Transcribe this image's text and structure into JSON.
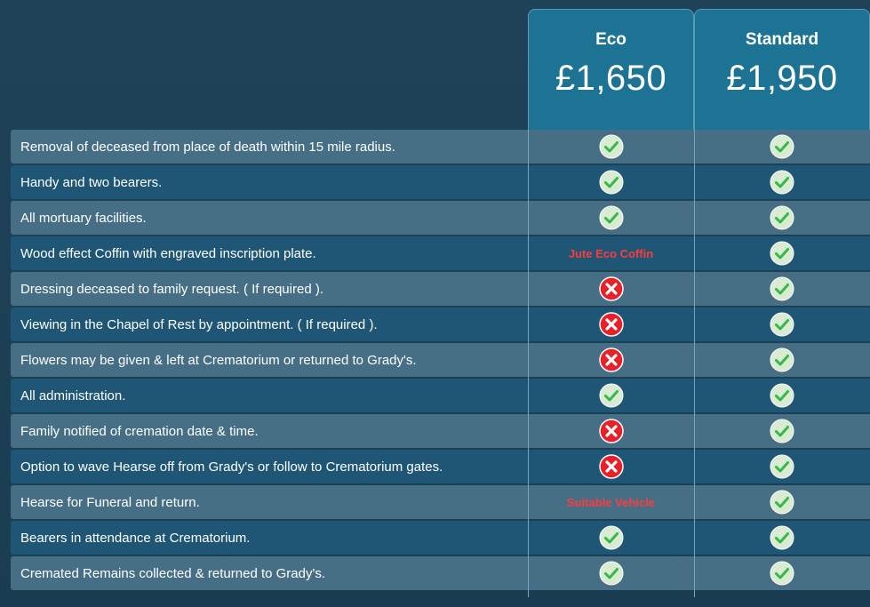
{
  "plans": [
    {
      "name": "Eco",
      "price": "£1,650"
    },
    {
      "name": "Standard",
      "price": "£1,950"
    }
  ],
  "colors": {
    "accent": "#1c7393",
    "check": "#39b54a",
    "cross": "#e8202a",
    "note": "#ff3b3b"
  },
  "rows": [
    {
      "feature": "Removal of deceased from place of death within 15 mile radius.",
      "eco": "check",
      "standard": "check"
    },
    {
      "feature": "Handy and two bearers.",
      "eco": "check",
      "standard": "check"
    },
    {
      "feature": "All mortuary facilities.",
      "eco": "check",
      "standard": "check"
    },
    {
      "feature": "Wood effect Coffin with engraved inscription plate.",
      "eco": "note",
      "eco_note": "Jute Eco Coffin",
      "standard": "check"
    },
    {
      "feature": "Dressing deceased to family request. ( If required ).",
      "eco": "cross",
      "standard": "check"
    },
    {
      "feature": "Viewing in the Chapel of Rest by appointment. ( If required ).",
      "eco": "cross",
      "standard": "check"
    },
    {
      "feature": "Flowers may be given & left at Crematorium or returned to Grady's.",
      "eco": "cross",
      "standard": "check"
    },
    {
      "feature": "All administration.",
      "eco": "check",
      "standard": "check"
    },
    {
      "feature": "Family notified of cremation date & time.",
      "eco": "cross",
      "standard": "check"
    },
    {
      "feature": "Option to wave Hearse off from Grady's or follow to Crematorium gates.",
      "eco": "cross",
      "standard": "check"
    },
    {
      "feature": "Hearse for Funeral and return.",
      "eco": "note",
      "eco_note": "Suitable Vehicle",
      "standard": "check"
    },
    {
      "feature": "Bearers in attendance at Crematorium.",
      "eco": "check",
      "standard": "check"
    },
    {
      "feature": "Cremated Remains collected & returned to Grady's.",
      "eco": "check",
      "standard": "check"
    }
  ]
}
